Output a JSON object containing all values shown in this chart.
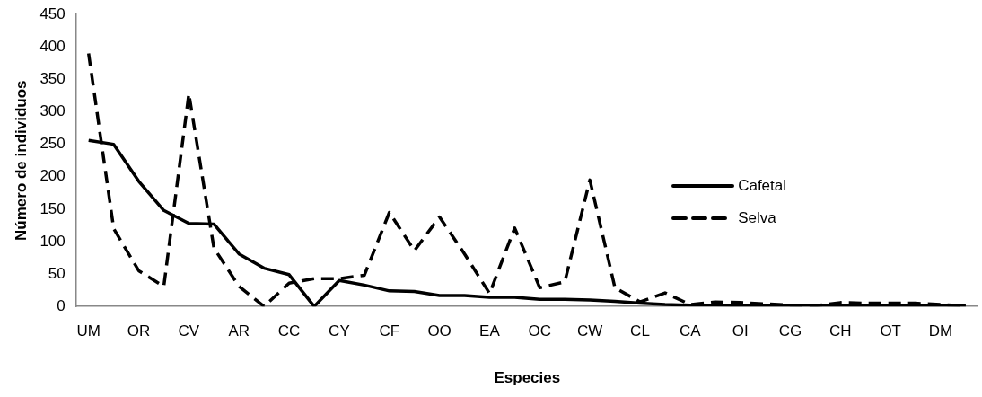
{
  "chart_data": {
    "type": "line",
    "xlabel": "Especies",
    "ylabel": "Número de individuos",
    "categories": [
      "UM",
      null,
      "OR",
      null,
      "CV",
      null,
      "AR",
      null,
      "CC",
      null,
      "CY",
      null,
      "CF",
      null,
      "OO",
      null,
      "EA",
      null,
      "OC",
      null,
      "CW",
      null,
      "CL",
      null,
      "CA",
      null,
      "OI",
      null,
      "CG",
      null,
      "CH",
      null,
      "OT",
      null,
      "DM",
      null
    ],
    "series": [
      {
        "name": "Cafetal",
        "color": "#000000",
        "line_style": "solid",
        "values": [
          256,
          250,
          193,
          148,
          128,
          127,
          81,
          59,
          49,
          0,
          40,
          33,
          24,
          23,
          17,
          17,
          14,
          14,
          11,
          11,
          10,
          8,
          5,
          3,
          2,
          2,
          1,
          1,
          1,
          1,
          1,
          1,
          1,
          1,
          1,
          1
        ]
      },
      {
        "name": "Selva",
        "color": "#000000",
        "line_style": "dashed",
        "values": [
          390,
          120,
          55,
          31,
          328,
          90,
          31,
          0,
          36,
          43,
          43,
          48,
          145,
          86,
          138,
          81,
          20,
          121,
          29,
          38,
          195,
          29,
          7,
          21,
          3,
          7,
          6,
          4,
          2,
          1,
          6,
          5,
          5,
          5,
          3,
          1
        ]
      }
    ],
    "ylim": [
      0,
      450
    ],
    "yticks": [
      0,
      50,
      100,
      150,
      200,
      250,
      300,
      350,
      400,
      450
    ],
    "grid": false,
    "legend": "right",
    "marker": "none"
  }
}
